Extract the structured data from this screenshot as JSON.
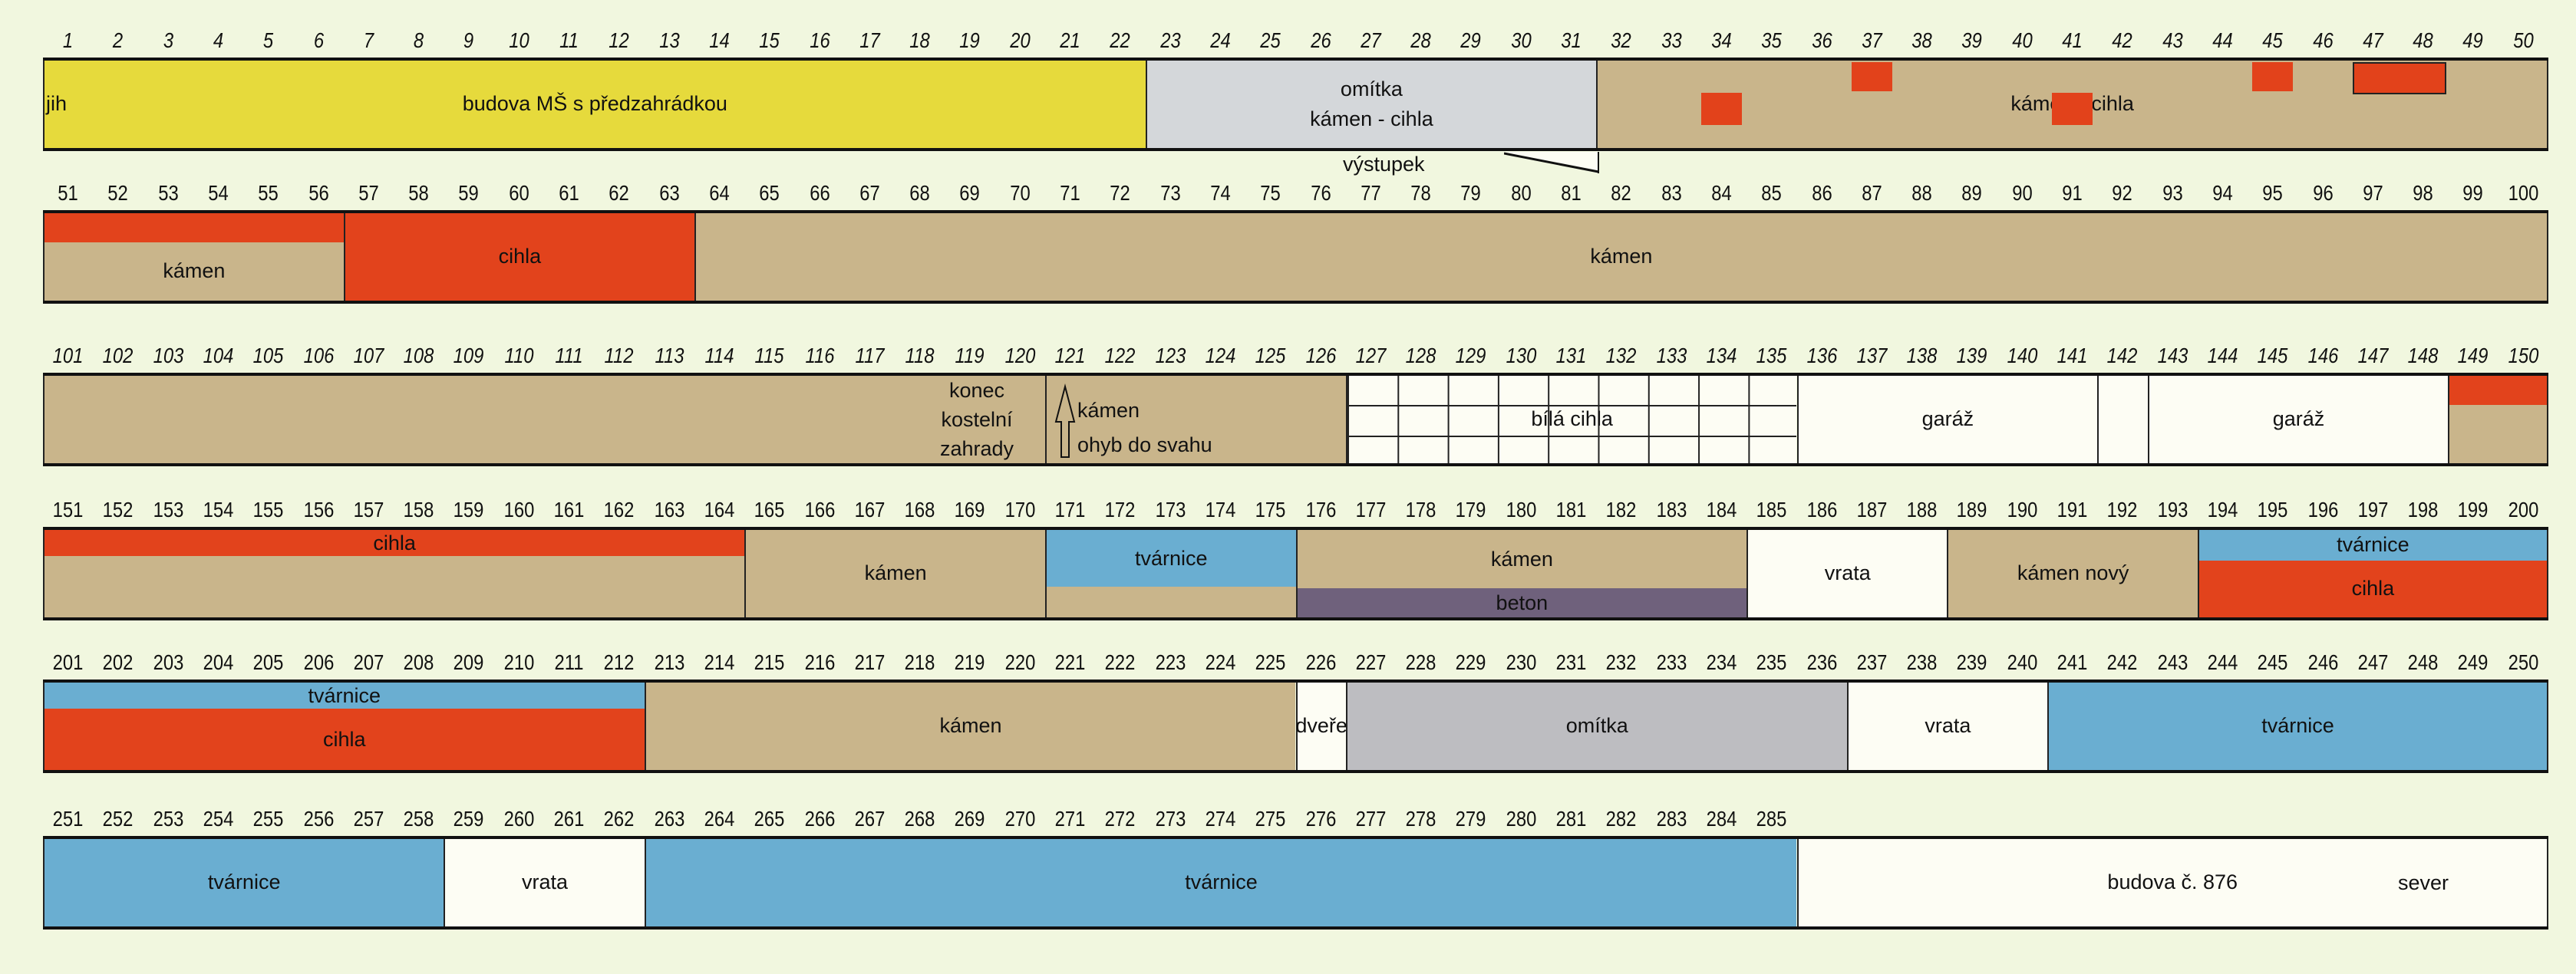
{
  "materials": {
    "budova_ms": "#e6da3c",
    "omitka_light": "#d4d7da",
    "omitka": "#bdbdc1",
    "kamen": "#c9b58b",
    "cihla": "#e2431c",
    "tvarnice": "#6aaed1",
    "beton": "#6f617c",
    "white": "#fdfdf4"
  },
  "annotations": {
    "jih": "jih",
    "vystupek": "výstupek",
    "konec": [
      "konec",
      "kostelní",
      "zahrady"
    ],
    "sever": "sever"
  },
  "rows": [
    {
      "numbers": [
        1,
        2,
        3,
        4,
        5,
        6,
        7,
        8,
        9,
        10,
        11,
        12,
        13,
        14,
        15,
        16,
        17,
        18,
        19,
        20,
        21,
        22,
        23,
        24,
        25,
        26,
        27,
        28,
        29,
        30,
        31,
        32,
        33,
        34,
        35,
        36,
        37,
        38,
        39,
        40,
        41,
        42,
        43,
        44,
        45,
        46,
        47,
        48,
        49,
        50
      ],
      "segments": [
        {
          "from": 1,
          "to": 22,
          "bands": [
            {
              "m": "budova_ms",
              "f": 1,
              "label": [
                "budova MŠ s předzahrádkou"
              ]
            }
          ]
        },
        {
          "from": 23,
          "to": 31,
          "bands": [
            {
              "m": "omitka_light",
              "f": 1,
              "label": [
                "omítka",
                "kámen - cihla"
              ]
            }
          ]
        },
        {
          "from": 32,
          "to": 50,
          "bands": [
            {
              "m": "kamen",
              "f": 1,
              "label": [
                "kámen - cihla"
              ]
            }
          ]
        }
      ],
      "patches": [
        {
          "from": 34,
          "to": 34,
          "level": "lower"
        },
        {
          "from": 37,
          "to": 37,
          "level": "upper"
        },
        {
          "from": 41,
          "to": 41,
          "level": "lower"
        },
        {
          "from": 45,
          "to": 45,
          "level": "upper"
        },
        {
          "from": 47,
          "to": 48,
          "level": "upper",
          "boxed": true
        }
      ]
    },
    {
      "numbers": [
        51,
        52,
        53,
        54,
        55,
        56,
        57,
        58,
        59,
        60,
        61,
        62,
        63,
        64,
        65,
        66,
        67,
        68,
        69,
        70,
        71,
        72,
        73,
        74,
        75,
        76,
        77,
        78,
        79,
        80,
        81,
        82,
        83,
        84,
        85,
        86,
        87,
        88,
        89,
        90,
        91,
        92,
        93,
        94,
        95,
        96,
        97,
        98,
        99,
        100
      ],
      "segments": [
        {
          "from": 51,
          "to": 56,
          "bands": [
            {
              "m": "cihla",
              "f": 0.33,
              "label": []
            },
            {
              "m": "kamen",
              "f": 0.67,
              "label": [
                "kámen"
              ]
            }
          ]
        },
        {
          "from": 57,
          "to": 63,
          "bands": [
            {
              "m": "cihla",
              "f": 1,
              "label": [
                "cihla"
              ]
            }
          ]
        },
        {
          "from": 64,
          "to": 100,
          "bands": [
            {
              "m": "kamen",
              "f": 1,
              "label": [
                "kámen"
              ]
            }
          ]
        }
      ]
    },
    {
      "numbers": [
        101,
        102,
        103,
        104,
        105,
        106,
        107,
        108,
        109,
        110,
        111,
        112,
        113,
        114,
        115,
        116,
        117,
        118,
        119,
        120,
        121,
        122,
        123,
        124,
        125,
        126,
        127,
        128,
        129,
        130,
        131,
        132,
        133,
        134,
        135,
        136,
        137,
        138,
        139,
        140,
        141,
        142,
        143,
        144,
        145,
        146,
        147,
        148,
        149,
        150
      ],
      "segments": [
        {
          "from": 101,
          "to": 120,
          "bands": [
            {
              "m": "kamen",
              "f": 1,
              "label": []
            }
          ]
        },
        {
          "from": 121,
          "to": 126,
          "bands": [
            {
              "m": "kamen",
              "f": 1,
              "label": [
                "kámen",
                "ohyb do svahu"
              ]
            }
          ],
          "arrow": true
        },
        {
          "from": 127,
          "to": 135,
          "bands": [
            {
              "m": "white",
              "f": 1,
              "label": [
                "bílá cihla"
              ]
            }
          ],
          "brick_grid": true
        },
        {
          "from": 136,
          "to": 141,
          "bands": [
            {
              "m": "white",
              "f": 1,
              "label": [
                "garáž"
              ]
            }
          ]
        },
        {
          "from": 142,
          "to": 142,
          "bands": [
            {
              "m": "white",
              "f": 1,
              "label": []
            }
          ]
        },
        {
          "from": 143,
          "to": 148,
          "bands": [
            {
              "m": "white",
              "f": 1,
              "label": [
                "garáž"
              ]
            }
          ]
        },
        {
          "from": 149,
          "to": 150,
          "bands": [
            {
              "m": "cihla",
              "f": 0.33,
              "label": []
            },
            {
              "m": "kamen",
              "f": 0.67,
              "label": []
            }
          ]
        }
      ]
    },
    {
      "numbers": [
        151,
        152,
        153,
        154,
        155,
        156,
        157,
        158,
        159,
        160,
        161,
        162,
        163,
        164,
        165,
        166,
        167,
        168,
        169,
        170,
        171,
        172,
        173,
        174,
        175,
        176,
        177,
        178,
        179,
        180,
        181,
        182,
        183,
        184,
        185,
        186,
        187,
        188,
        189,
        190,
        191,
        192,
        193,
        194,
        195,
        196,
        197,
        198,
        199,
        200
      ],
      "segments": [
        {
          "from": 151,
          "to": 164,
          "bands": [
            {
              "m": "cihla",
              "f": 0.3,
              "label": [
                "cihla"
              ]
            },
            {
              "m": "kamen",
              "f": 0.7,
              "label": []
            }
          ]
        },
        {
          "from": 165,
          "to": 170,
          "bands": [
            {
              "m": "kamen",
              "f": 1,
              "label": [
                "kámen"
              ]
            }
          ]
        },
        {
          "from": 171,
          "to": 175,
          "bands": [
            {
              "m": "tvarnice",
              "f": 0.65,
              "label": [
                "tvárnice"
              ]
            },
            {
              "m": "kamen",
              "f": 0.35,
              "label": []
            }
          ]
        },
        {
          "from": 176,
          "to": 184,
          "bands": [
            {
              "m": "kamen",
              "f": 0.67,
              "label": [
                "kámen"
              ]
            },
            {
              "m": "beton",
              "f": 0.33,
              "label": [
                "beton"
              ]
            }
          ]
        },
        {
          "from": 185,
          "to": 188,
          "bands": [
            {
              "m": "white",
              "f": 1,
              "label": [
                "vrata"
              ]
            }
          ]
        },
        {
          "from": 189,
          "to": 193,
          "bands": [
            {
              "m": "kamen",
              "f": 1,
              "label": [
                "kámen nový"
              ]
            }
          ]
        },
        {
          "from": 194,
          "to": 200,
          "bands": [
            {
              "m": "tvarnice",
              "f": 0.35,
              "label": [
                "tvárnice"
              ]
            },
            {
              "m": "cihla",
              "f": 0.65,
              "label": [
                "cihla"
              ]
            }
          ]
        }
      ]
    },
    {
      "numbers": [
        201,
        202,
        203,
        204,
        205,
        206,
        207,
        208,
        209,
        210,
        211,
        212,
        213,
        214,
        215,
        216,
        217,
        218,
        219,
        220,
        221,
        222,
        223,
        224,
        225,
        226,
        227,
        228,
        229,
        230,
        231,
        232,
        233,
        234,
        235,
        236,
        237,
        238,
        239,
        240,
        241,
        242,
        243,
        244,
        245,
        246,
        247,
        248,
        249,
        250
      ],
      "segments": [
        {
          "from": 201,
          "to": 212,
          "bands": [
            {
              "m": "tvarnice",
              "f": 0.3,
              "label": [
                "tvárnice"
              ]
            },
            {
              "m": "cihla",
              "f": 0.7,
              "label": [
                "cihla"
              ]
            }
          ]
        },
        {
          "from": 213,
          "to": 225,
          "bands": [
            {
              "m": "kamen",
              "f": 1,
              "label": [
                "kámen"
              ]
            }
          ]
        },
        {
          "from": 226,
          "to": 226,
          "bands": [
            {
              "m": "white",
              "f": 1,
              "label": [
                "dveře"
              ]
            }
          ]
        },
        {
          "from": 227,
          "to": 236,
          "bands": [
            {
              "m": "omitka",
              "f": 1,
              "label": [
                "omítka"
              ]
            }
          ]
        },
        {
          "from": 237,
          "to": 240,
          "bands": [
            {
              "m": "white",
              "f": 1,
              "label": [
                "vrata"
              ]
            }
          ]
        },
        {
          "from": 241,
          "to": 250,
          "bands": [
            {
              "m": "tvarnice",
              "f": 1,
              "label": [
                "tvárnice"
              ]
            }
          ]
        }
      ]
    },
    {
      "numbers": [
        251,
        252,
        253,
        254,
        255,
        256,
        257,
        258,
        259,
        260,
        261,
        262,
        263,
        264,
        265,
        266,
        267,
        268,
        269,
        270,
        271,
        272,
        273,
        274,
        275,
        276,
        277,
        278,
        279,
        280,
        281,
        282,
        283,
        284,
        285
      ],
      "segments": [
        {
          "from": 251,
          "to": 258,
          "bands": [
            {
              "m": "tvarnice",
              "f": 1,
              "label": [
                "tvárnice"
              ]
            }
          ]
        },
        {
          "from": 259,
          "to": 262,
          "bands": [
            {
              "m": "white",
              "f": 1,
              "label": [
                "vrata"
              ]
            }
          ]
        },
        {
          "from": 263,
          "to": 285,
          "bands": [
            {
              "m": "tvarnice",
              "f": 1,
              "label": [
                "tvárnice"
              ]
            }
          ]
        },
        {
          "from": 286,
          "to": 300,
          "bands": [
            {
              "m": "white",
              "f": 1,
              "label": [
                "budova č. 876"
              ]
            }
          ]
        }
      ]
    }
  ]
}
